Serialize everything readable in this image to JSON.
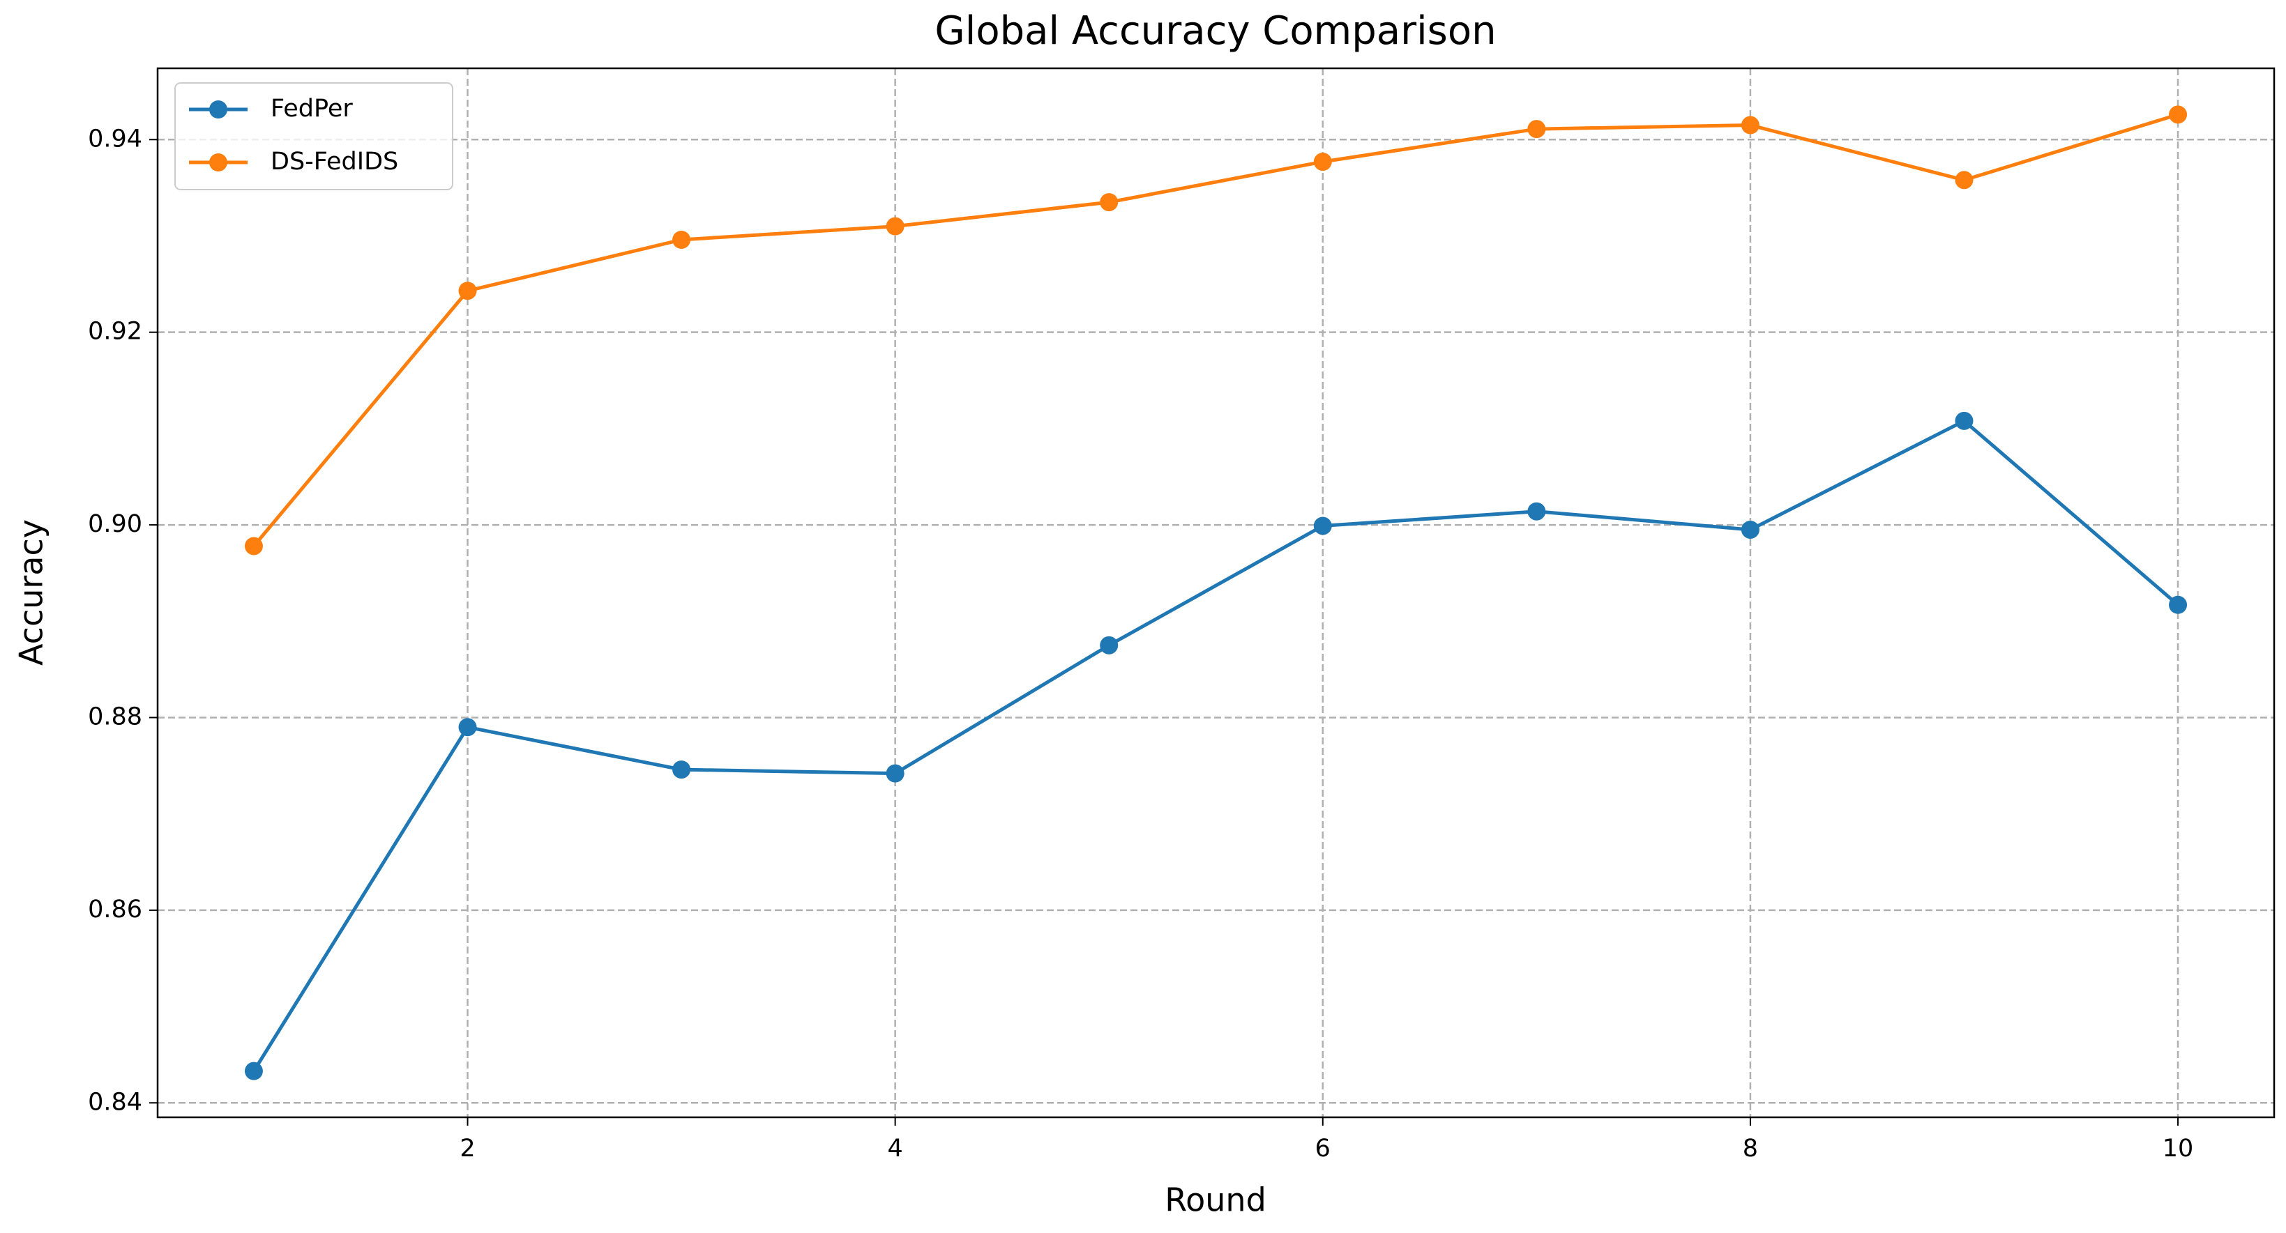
{
  "chart_data": {
    "type": "line",
    "title": "Global Accuracy Comparison",
    "x_label": "Round",
    "y_label": "Accuracy",
    "x": [
      1,
      2,
      3,
      4,
      5,
      6,
      7,
      8,
      9,
      10
    ],
    "series": [
      {
        "name": "FedPer",
        "color": "#1f77b4",
        "values": [
          0.8433,
          0.879,
          0.8746,
          0.8742,
          0.8875,
          0.8999,
          0.9014,
          0.8995,
          0.9108,
          0.8917
        ]
      },
      {
        "name": "DS-FedIDS",
        "color": "#ff7f0e",
        "values": [
          0.8978,
          0.9243,
          0.9296,
          0.931,
          0.9335,
          0.9377,
          0.9411,
          0.9415,
          0.9358,
          0.9426
        ]
      }
    ],
    "xlim": [
      0.55,
      10.45
    ],
    "xticks": [
      2,
      4,
      6,
      8,
      10
    ],
    "ylim": [
      0.8385,
      0.9474
    ],
    "yticks": [
      0.84,
      0.86,
      0.88,
      {
        "value": 0.9,
        "label": "0.90"
      },
      0.92,
      0.94
    ],
    "grid": true,
    "legend": "upper left"
  }
}
